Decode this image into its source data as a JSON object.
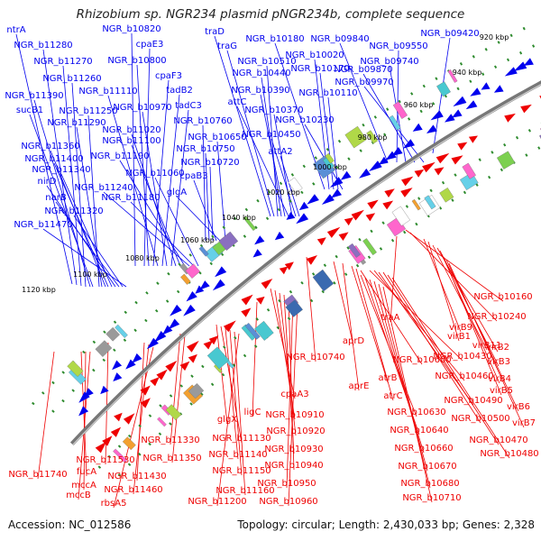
{
  "title": "Rhizobium sp. NGR234 plasmid pNGR234b, complete sequence",
  "footer": {
    "accession": "Accession: NC_012586",
    "summary": "Topology: circular; Length: 2,430,033 bp; Genes: 2,328"
  },
  "colors": {
    "forward_gene": "#0000ee",
    "reverse_gene": "#ee0000",
    "backbone": "#777777",
    "tick_dot": "#2e8b2e"
  },
  "ticks": [
    "920 kbp",
    "940 kbp",
    "960 kbp",
    "980 kbp",
    "1000 kbp",
    "1020 kbp",
    "1040 kbp",
    "1060 kbp",
    "1080 kbp",
    "1100 kbp",
    "1120 kbp"
  ],
  "forward_labels": [
    "ntrA",
    "NGR_b11280",
    "NGR_b11270",
    "NGR_b11260",
    "NGR_b11390",
    "sucB1",
    "NGR_b11250",
    "NGR_b11290",
    "NGR_b11360",
    "NGR_b11400",
    "NGR_b11340",
    "nirD",
    "narB",
    "NGR_b11320",
    "NGR_b11470",
    "NGR_b10820",
    "cpaE3",
    "NGR_b10800",
    "cpaF3",
    "NGR_b11110",
    "tadB2",
    "NGR_b10970",
    "tadC3",
    "NGR_b11020",
    "NGR_b11100",
    "NGR_b11190",
    "NGR_b11240",
    "NGR_b11180",
    "NGR_b11060",
    "NGR_b10760",
    "NGR_b10750",
    "NGR_b10720",
    "cpaB3",
    "glgA",
    "NGR_b10650",
    "traD",
    "traG",
    "NGR_b10510",
    "NGR_b10440",
    "NGR_b10390",
    "attC",
    "NGR_b10370",
    "NGR_b10450",
    "attA2",
    "NGR_b10180",
    "NGR_b10020",
    "NGR_b10170",
    "NGR_b10110",
    "NGR_b10230",
    "NGR_b09840",
    "NGR_b09550",
    "NGR_b09740",
    "NGR_b09870",
    "NGR_b09970",
    "NGR_b09420"
  ],
  "reverse_labels": [
    "NGR_b10160",
    "NGR_b10240",
    "traA",
    "virB9",
    "virB1",
    "virB11",
    "virB2",
    "virB3",
    "virB4",
    "virB5",
    "virB6",
    "virB7",
    "NGR_b10740",
    "aprD",
    "aprE",
    "atrB",
    "atrC",
    "NGR_b10600",
    "NGR_b10430",
    "NGR_b10460",
    "NGR_b10490",
    "NGR_b10500",
    "NGR_b10470",
    "NGR_b10480",
    "NGR_b10630",
    "NGR_b10640",
    "NGR_b10660",
    "NGR_b10670",
    "NGR_b10680",
    "NGR_b10710",
    "cpaA3",
    "NGR_b10910",
    "NGR_b10920",
    "NGR_b10930",
    "NGR_b10940",
    "NGR_b10950",
    "NGR_b10960",
    "ligC",
    "glgX",
    "NGR_b11130",
    "NGR_b11140",
    "NGR_b11150",
    "NGR_b11160",
    "NGR_b11200",
    "NGR_b11330",
    "NGR_b11350",
    "NGR_b11430",
    "NGR_b11460",
    "NGR_b11530",
    "NGR_b11740",
    "fucA",
    "mccA",
    "mccB",
    "rbsA5"
  ]
}
